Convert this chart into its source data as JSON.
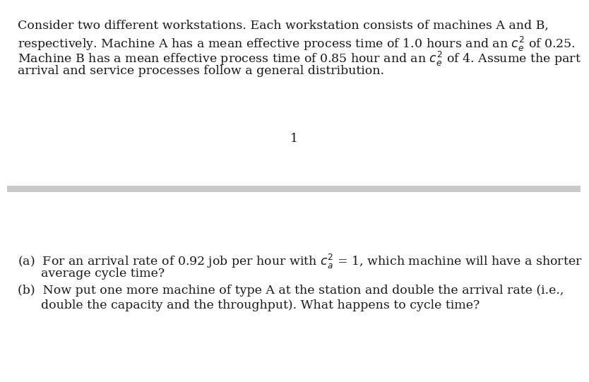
{
  "background_color": "#ffffff",
  "separator_color": "#c8c8c8",
  "text_color": "#1a1a1a",
  "center_label": "1",
  "font_size": 12.5,
  "paragraph_lines": [
    "Consider two different workstations. Each workstation consists of machines A and B,",
    "respectively. Machine A has a mean effective process time of 1.0 hours and an $c_e^2$ of 0.25.",
    "Machine B has a mean effective process time of 0.85 hour and an $c_e^2$ of 4. Assume the part",
    "arrival and service processes follow a general distribution."
  ],
  "question_a_lines": [
    "(a)  For an arrival rate of 0.92 job per hour with $c_a^2$ = 1, which machine will have a shorter",
    "      average cycle time?"
  ],
  "question_b_lines": [
    "(b)  Now put one more machine of type A at the station and double the arrival rate (i.e.,",
    "      double the capacity and the throughput). What happens to cycle time?"
  ]
}
